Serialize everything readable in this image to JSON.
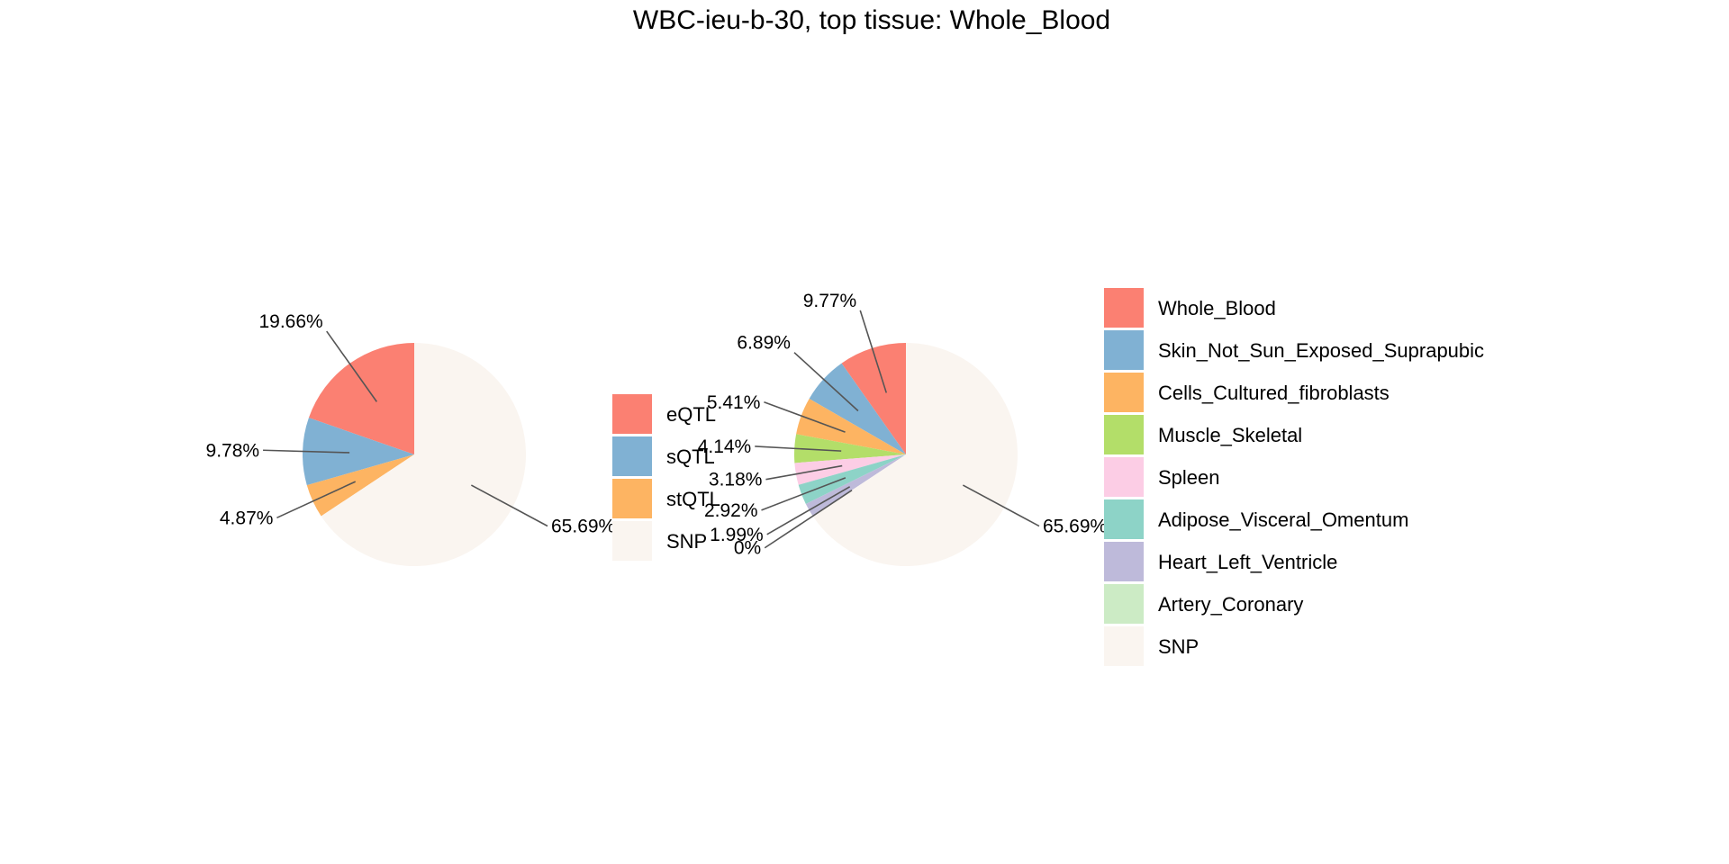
{
  "chart_data": {
    "title": "WBC-ieu-b-30, top tissue: Whole_Blood",
    "charts": [
      {
        "type": "pie",
        "slices": [
          {
            "name": "eQTL",
            "value": 19.66,
            "label": "19.66%",
            "color": "#FB8072"
          },
          {
            "name": "sQTL",
            "value": 9.78,
            "label": "9.78%",
            "color": "#80B1D3"
          },
          {
            "name": "stQTL",
            "value": 4.87,
            "label": "4.87%",
            "color": "#FDB462"
          },
          {
            "name": "SNP",
            "value": 65.69,
            "label": "65.69%",
            "color": "#FAF5F0"
          }
        ],
        "legend": [
          "eQTL",
          "sQTL",
          "stQTL",
          "SNP"
        ],
        "legend_placement": "right"
      },
      {
        "type": "pie",
        "slices": [
          {
            "name": "Whole_Blood",
            "value": 9.77,
            "label": "9.77%",
            "color": "#FB8072"
          },
          {
            "name": "Skin_Not_Sun_Exposed_Suprapubic",
            "value": 6.89,
            "label": "6.89%",
            "color": "#80B1D3"
          },
          {
            "name": "Cells_Cultured_fibroblasts",
            "value": 5.41,
            "label": "5.41%",
            "color": "#FDB462"
          },
          {
            "name": "Muscle_Skeletal",
            "value": 4.14,
            "label": "4.14%",
            "color": "#B3DE69"
          },
          {
            "name": "Spleen",
            "value": 3.18,
            "label": "3.18%",
            "color": "#FCCDE5"
          },
          {
            "name": "Adipose_Visceral_Omentum",
            "value": 2.92,
            "label": "2.92%",
            "color": "#8DD3C7"
          },
          {
            "name": "Heart_Left_Ventricle",
            "value": 1.99,
            "label": "1.99%",
            "color": "#BEBADA"
          },
          {
            "name": "Artery_Coronary",
            "value": 0,
            "label": "0%",
            "color": "#CCEBC5"
          },
          {
            "name": "SNP",
            "value": 65.69,
            "label": "65.69%",
            "color": "#FAF5F0"
          }
        ],
        "legend": [
          "Whole_Blood",
          "Skin_Not_Sun_Exposed_Suprapubic",
          "Cells_Cultured_fibroblasts",
          "Muscle_Skeletal",
          "Spleen",
          "Adipose_Visceral_Omentum",
          "Heart_Left_Ventricle",
          "Artery_Coronary",
          "SNP"
        ],
        "legend_placement": "right"
      }
    ]
  }
}
